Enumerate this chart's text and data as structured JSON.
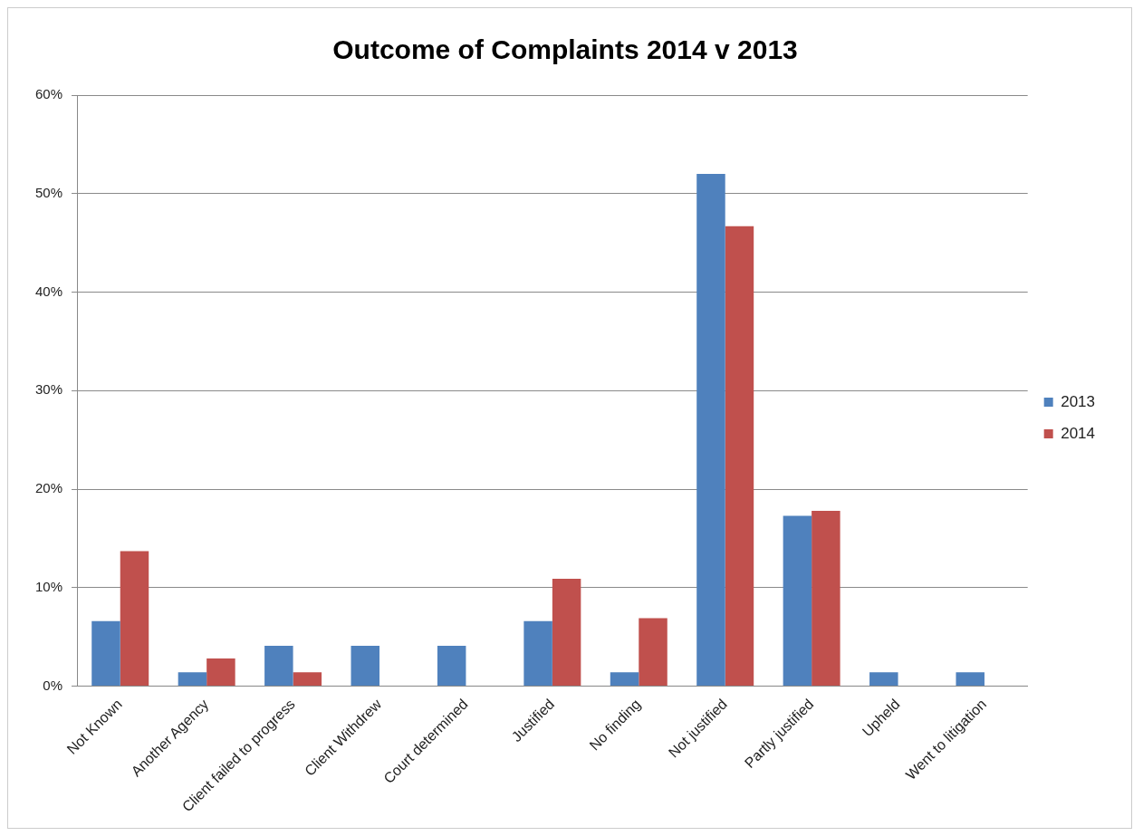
{
  "chart_data": {
    "type": "bar",
    "title": "Outcome of Complaints 2014 v 2013",
    "categories": [
      "Not Known",
      "Another Agency",
      "Client failed to progress",
      "Client Withdrew",
      "Court determined",
      "Justified",
      "No finding",
      "Not justified",
      "Partly justified",
      "Upheld",
      "Went to litigation"
    ],
    "series": [
      {
        "name": "2013",
        "color": "#4f81bd",
        "values": [
          6.6,
          1.4,
          4.1,
          4.1,
          4.1,
          6.6,
          1.4,
          52.0,
          17.3,
          1.4,
          1.4
        ]
      },
      {
        "name": "2014",
        "color": "#c0504d",
        "values": [
          13.7,
          2.8,
          1.4,
          0,
          0,
          10.9,
          6.9,
          46.7,
          17.8,
          0,
          0
        ]
      }
    ],
    "ylim": [
      0,
      60
    ],
    "yticks": [
      {
        "value": 0,
        "label": "0%"
      },
      {
        "value": 10,
        "label": "10%"
      },
      {
        "value": 20,
        "label": "20%"
      },
      {
        "value": 30,
        "label": "30%"
      },
      {
        "value": 40,
        "label": "40%"
      },
      {
        "value": 50,
        "label": "50%"
      },
      {
        "value": 60,
        "label": "60%"
      }
    ],
    "grid": "y",
    "legend": "right"
  }
}
